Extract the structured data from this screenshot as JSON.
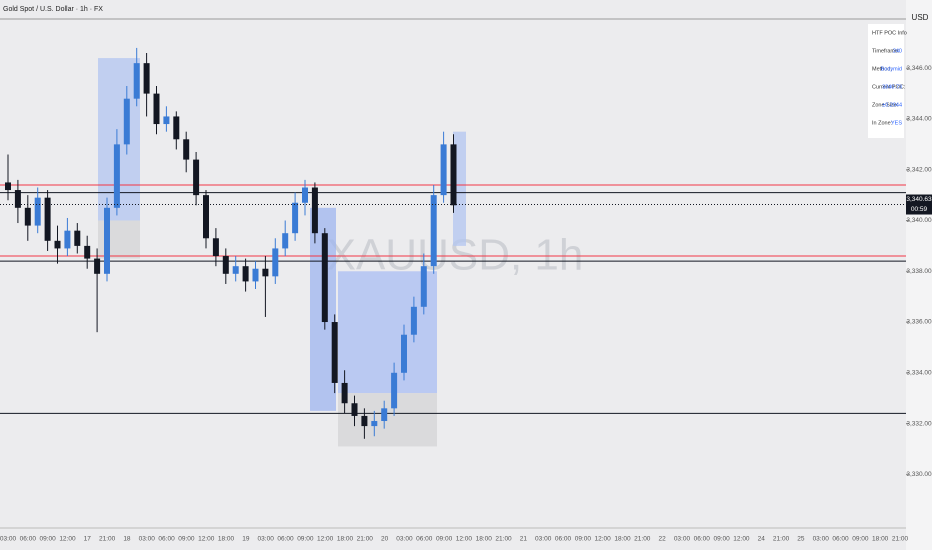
{
  "header": {
    "title": "Gold Spot / U.S. Dollar · 1h · FX",
    "currency": "USD"
  },
  "watermark": "XAUUSD, 1h",
  "info": {
    "rows": [
      [
        "HTF POC Info",
        ""
      ],
      [
        "Timeframe:",
        "240"
      ],
      [
        "Method:",
        "Bodymid"
      ],
      [
        "Current POC:",
        "3340.73"
      ],
      [
        "Zone Size:",
        "±0.2044"
      ],
      [
        "In Zone:",
        "YES"
      ]
    ]
  },
  "chart_data": {
    "type": "candlestick",
    "open": [
      3341.5,
      3341.2,
      3340.5,
      3339.8,
      3340.9,
      3339.2,
      3338.9,
      3339.6,
      3339.0,
      3338.5,
      3337.9,
      3340.5,
      3343.0,
      3344.8,
      3346.2,
      3345.0,
      3343.8,
      3344.1,
      3343.2,
      3342.4,
      3341.0,
      3339.3,
      3338.6,
      3337.9,
      3338.2,
      3337.6,
      3338.1,
      3337.8,
      3338.9,
      3339.5,
      3340.7,
      3341.3,
      3339.5,
      3336.0,
      3333.6,
      3332.8,
      3332.3,
      3331.9,
      3332.1,
      3332.6,
      3334.0,
      3335.5,
      3336.6,
      3338.2,
      3341.0,
      3343.0
    ],
    "high": [
      3342.6,
      3341.6,
      3341.0,
      3341.3,
      3341.2,
      3339.8,
      3340.1,
      3339.9,
      3339.4,
      3338.9,
      3340.9,
      3343.6,
      3345.3,
      3346.8,
      3346.6,
      3345.3,
      3344.5,
      3344.3,
      3343.5,
      3342.7,
      3341.2,
      3339.7,
      3338.9,
      3338.6,
      3338.5,
      3338.4,
      3338.6,
      3339.3,
      3340.0,
      3341.1,
      3341.6,
      3341.5,
      3339.7,
      3336.3,
      3334.1,
      3333.1,
      3332.6,
      3332.5,
      3332.9,
      3334.4,
      3335.9,
      3337.0,
      3338.7,
      3341.4,
      3343.5,
      3343.4
    ],
    "low": [
      3340.8,
      3339.9,
      3339.2,
      3339.5,
      3338.8,
      3338.3,
      3338.6,
      3338.7,
      3338.1,
      3335.6,
      3337.6,
      3340.2,
      3342.6,
      3344.5,
      3344.1,
      3343.4,
      3343.5,
      3342.8,
      3341.9,
      3340.6,
      3338.9,
      3338.2,
      3337.5,
      3337.6,
      3337.2,
      3337.3,
      3336.2,
      3337.5,
      3338.6,
      3339.2,
      3340.2,
      3339.1,
      3335.7,
      3333.2,
      3332.4,
      3331.9,
      3331.4,
      3331.5,
      3331.8,
      3332.3,
      3333.7,
      3335.2,
      3336.3,
      3337.9,
      3340.7,
      3340.3
    ],
    "close": [
      3341.2,
      3340.5,
      3339.8,
      3340.9,
      3339.2,
      3338.9,
      3339.6,
      3339.0,
      3338.5,
      3337.9,
      3340.5,
      3343.0,
      3344.8,
      3346.2,
      3345.0,
      3343.8,
      3344.1,
      3343.2,
      3342.4,
      3341.0,
      3339.3,
      3338.6,
      3337.9,
      3338.2,
      3337.6,
      3338.1,
      3337.8,
      3338.9,
      3339.5,
      3340.7,
      3341.3,
      3339.5,
      3336.0,
      3333.6,
      3332.8,
      3332.3,
      3331.9,
      3332.1,
      3332.6,
      3334.0,
      3335.5,
      3336.6,
      3338.2,
      3341.0,
      3343.0,
      3340.6
    ],
    "up_color": "#3a7bd5",
    "down_color": "#131722",
    "ylim": [
      3328.2,
      3347.9
    ],
    "yticks": [
      {
        "value": 3330,
        "label": "3,330.00"
      },
      {
        "value": 3332,
        "label": "3,332.00"
      },
      {
        "value": 3334,
        "label": "3,334.00"
      },
      {
        "value": 3336,
        "label": "3,336.00"
      },
      {
        "value": 3338,
        "label": "3,338.00"
      },
      {
        "value": 3340,
        "label": "3,340.00"
      },
      {
        "value": 3342,
        "label": "3,342.00"
      },
      {
        "value": 3344,
        "label": "3,344.00"
      },
      {
        "value": 3346,
        "label": "3,346.00"
      }
    ],
    "levels": [
      {
        "value": 3341.1,
        "color": "#131722"
      },
      {
        "value": 3338.4,
        "color": "#131722"
      },
      {
        "value": 3332.4,
        "color": "#131722"
      },
      {
        "value": 3341.4,
        "color": "#f23645"
      },
      {
        "value": 3338.6,
        "color": "#f23645"
      }
    ],
    "zones": [
      {
        "top": 3346.4,
        "bottom": 3340.0,
        "color": "#b3c5f0"
      },
      {
        "top": 3340.0,
        "bottom": 3338.5,
        "color": "#d4d4d6"
      },
      {
        "top": 3340.5,
        "bottom": 3332.5,
        "color": "#9fb6ef"
      },
      {
        "top": 3338.0,
        "bottom": 3333.2,
        "color": "#a9bdf3"
      },
      {
        "top": 3333.2,
        "bottom": 3331.1,
        "color": "#d4d4d6"
      },
      {
        "top": 3343.5,
        "bottom": 3339.0,
        "color": "#b3c5f0"
      }
    ],
    "current_price": {
      "value": 3340.63,
      "label": "3,340.63"
    },
    "countdown": "00:59",
    "time_labels": [
      "03:00",
      "06:00",
      "09:00",
      "12:00",
      "17",
      "21:00",
      "18",
      "03:00",
      "06:00",
      "09:00",
      "12:00",
      "18:00",
      "19",
      "03:00",
      "06:00",
      "09:00",
      "12:00",
      "18:00",
      "21:00",
      "20",
      "03:00",
      "06:00",
      "09:00",
      "12:00",
      "18:00",
      "21:00",
      "21",
      "03:00",
      "06:00",
      "09:00",
      "12:00",
      "18:00",
      "21:00",
      "22",
      "03:00",
      "06:00",
      "09:00",
      "12:00",
      "24",
      "21:00",
      "25",
      "03:00",
      "06:00",
      "09:00",
      "18:00",
      "21:00"
    ]
  }
}
